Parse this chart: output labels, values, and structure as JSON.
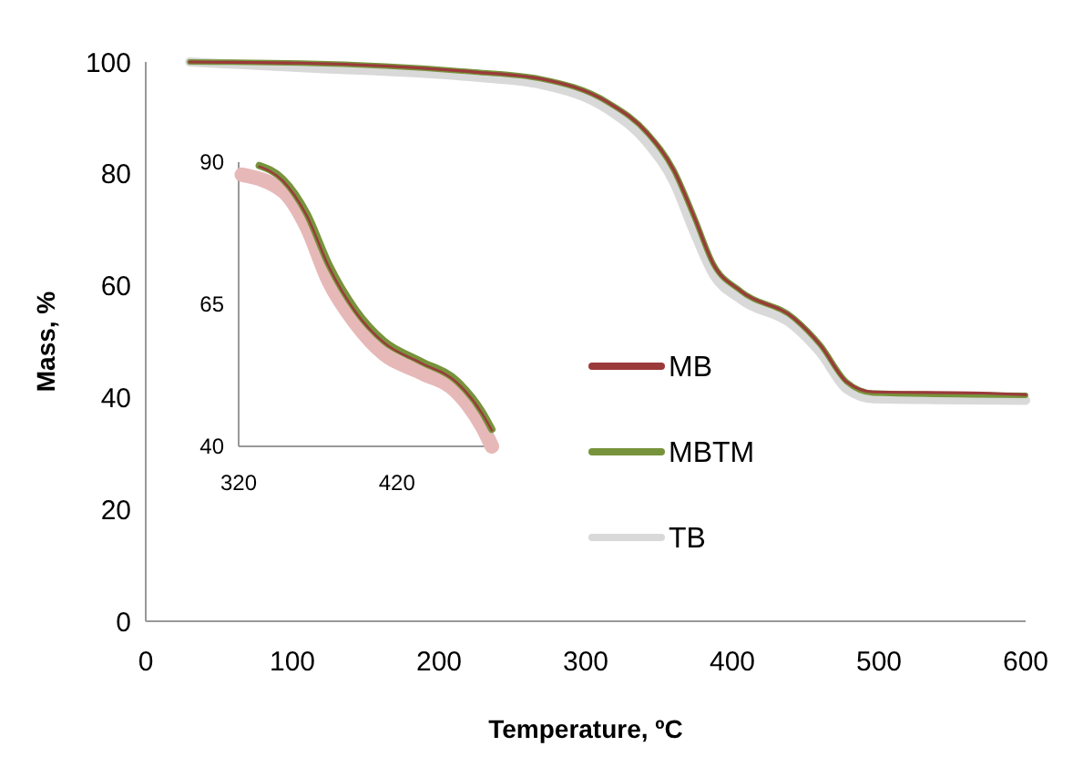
{
  "chart_data": [
    {
      "type": "line",
      "xlabel": "Temperature, ºC",
      "ylabel": "Mass, %",
      "xlim": [
        0,
        600
      ],
      "xticks": [
        0,
        100,
        200,
        300,
        400,
        500,
        600
      ],
      "ylim": [
        0,
        100
      ],
      "yticks": [
        0,
        20,
        40,
        60,
        80,
        100
      ],
      "legend": "right",
      "series": [
        {
          "name": "TB",
          "color": "#d9d9d9",
          "x": [
            30,
            106,
            224,
            269,
            315,
            342,
            360,
            374,
            387,
            406,
            442,
            460,
            478,
            496,
            600
          ],
          "values": [
            100,
            99,
            97.3,
            96,
            91.5,
            85.5,
            78.5,
            69.5,
            62,
            57.5,
            52.8,
            48,
            41.5,
            39.8,
            39.5
          ]
        },
        {
          "name": "MBTM",
          "color": "#77933c",
          "x": [
            30,
            106,
            224,
            269,
            315,
            342,
            360,
            374,
            387,
            406,
            442,
            460,
            478,
            496,
            600
          ],
          "values": [
            100,
            99.8,
            98.2,
            97,
            92.8,
            87.3,
            80.7,
            72.3,
            63.9,
            59,
            54.2,
            49.4,
            42.8,
            40.8,
            40.4
          ]
        },
        {
          "name": "MB",
          "color": "#9b3a3a",
          "x": [
            30,
            106,
            224,
            269,
            315,
            342,
            360,
            374,
            387,
            406,
            442,
            460,
            478,
            496,
            570,
            600
          ],
          "values": [
            100,
            99.8,
            98.2,
            97,
            92.8,
            87.3,
            80.7,
            72.3,
            63.9,
            59,
            54.2,
            49.4,
            42.8,
            41,
            40.8,
            40.5
          ]
        }
      ]
    },
    {
      "type": "line",
      "xlim": [
        320,
        480
      ],
      "xticks": [
        320,
        420
      ],
      "ylim": [
        40,
        90
      ],
      "yticks": [
        40,
        65,
        90
      ],
      "series": [
        {
          "color": "#e6b9b8",
          "x": [
            322,
            348,
            363,
            377,
            394,
            412,
            435,
            458,
            474,
            480
          ],
          "values": [
            87.8,
            84.9,
            78.6,
            69,
            61.6,
            56.2,
            53,
            49.5,
            43.4,
            40
          ]
        },
        {
          "color": "#77933c",
          "x": [
            333,
            348,
            363,
            377,
            394,
            412,
            435,
            458,
            474,
            480
          ],
          "values": [
            89.4,
            87,
            81,
            72,
            64,
            58.5,
            55,
            51.5,
            46,
            43
          ]
        },
        {
          "color": "#9b3a3a",
          "x": [
            333,
            348,
            363,
            377,
            394,
            412,
            435,
            458,
            474,
            480
          ],
          "values": [
            89.2,
            86.7,
            80.6,
            71.6,
            63.6,
            58.2,
            54.7,
            51.2,
            45.7,
            42.8
          ]
        }
      ]
    }
  ]
}
